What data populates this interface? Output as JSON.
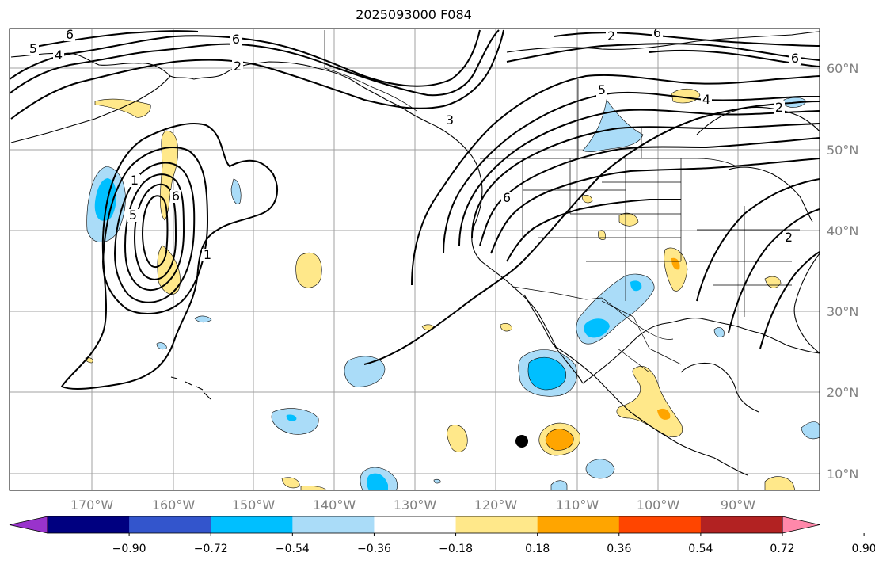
{
  "title": "2025093000 F084",
  "map": {
    "lon_range": [
      -180,
      -80
    ],
    "lat_range": [
      8,
      65
    ],
    "lon_labels": [
      "170°W",
      "160°W",
      "150°W",
      "140°W",
      "130°W",
      "120°W",
      "110°W",
      "100°W",
      "90°W"
    ],
    "lat_labels": [
      "60°N",
      "50°N",
      "40°N",
      "30°N",
      "20°N",
      "10°N"
    ],
    "contour_labels": [
      "6",
      "5",
      "4",
      "6",
      "2",
      "1",
      "3",
      "6",
      "5",
      "4",
      "2",
      "6",
      "2",
      "1",
      "5",
      "6",
      "2",
      "6"
    ],
    "marker": "black-dot-storm-position"
  },
  "colorbar": {
    "colors": [
      "#9933cc",
      "#000080",
      "#3355cc",
      "#00bfff",
      "#aadcf8",
      "#ffffff",
      "#ffe88a",
      "#ffa500",
      "#ff4500",
      "#b22222",
      "#ff88aa"
    ],
    "tick_labels": [
      "−0.90",
      "−0.72",
      "−0.54",
      "−0.36",
      "−0.18",
      "0.18",
      "0.36",
      "0.54",
      "0.72",
      "0.90"
    ]
  }
}
